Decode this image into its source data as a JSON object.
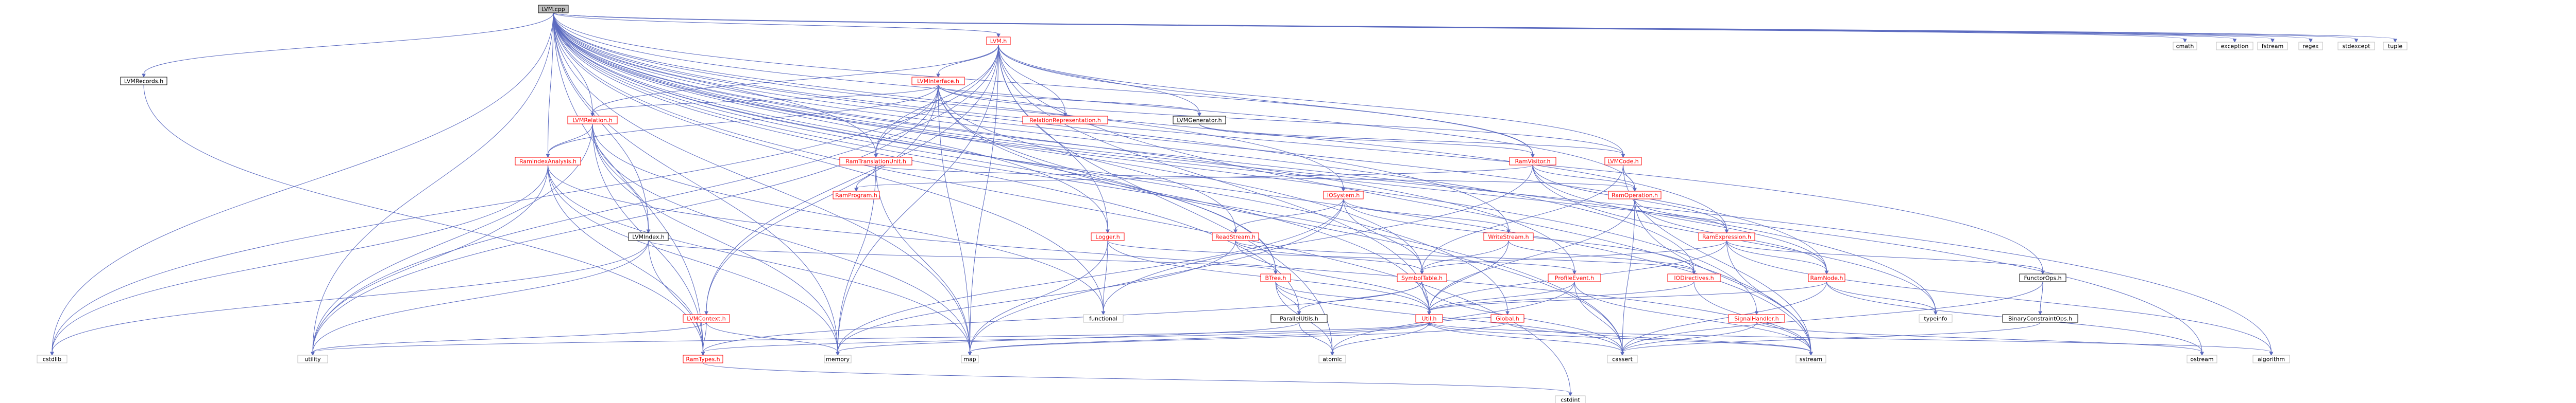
{
  "graph": {
    "root": "LVM.cpp",
    "colors": {
      "root_fill": "#bfbfbf",
      "node_fill": "#ffffff",
      "node_border": "#000000",
      "node_border_undoc": "#bfbfbf",
      "link_text": "#000000",
      "red_text": "#ff0000",
      "edge": "#5c6bc0"
    },
    "nodes": [
      {
        "id": "lvm_cpp",
        "label": "LVM.cpp",
        "style": "root"
      },
      {
        "id": "lvm_h",
        "label": "LVM.h",
        "style": "red"
      },
      {
        "id": "lvmrecords_h",
        "label": "LVMRecords.h",
        "style": "normal"
      },
      {
        "id": "lvminterface_h",
        "label": "LVMInterface.h",
        "style": "red"
      },
      {
        "id": "lvmrelation_h",
        "label": "LVMRelation.h",
        "style": "red"
      },
      {
        "id": "relationrepr_h",
        "label": "RelationRepresentation.h",
        "style": "red"
      },
      {
        "id": "lvmgenerator_h",
        "label": "LVMGenerator.h",
        "style": "normal"
      },
      {
        "id": "raminterm_h",
        "label": "RamTranslationUnit.h",
        "style": "red"
      },
      {
        "id": "ramvisitor_h",
        "label": "RamVisitor.h",
        "style": "red"
      },
      {
        "id": "lvmcode_h",
        "label": "LVMCode.h",
        "style": "red"
      },
      {
        "id": "ramindexanalysis_h",
        "label": "RamIndexAnalysis.h",
        "style": "red"
      },
      {
        "id": "ramprogram_h",
        "label": "RamProgram.h",
        "style": "red"
      },
      {
        "id": "iosystem_h",
        "label": "IOSystem.h",
        "style": "red"
      },
      {
        "id": "ramoperation_h",
        "label": "RamOperation.h",
        "style": "red"
      },
      {
        "id": "lvmindex_h",
        "label": "LVMIndex.h",
        "style": "normal"
      },
      {
        "id": "logger_h",
        "label": "Logger.h",
        "style": "red"
      },
      {
        "id": "readstream_h",
        "label": "ReadStream.h",
        "style": "red"
      },
      {
        "id": "writestream_h",
        "label": "WriteStream.h",
        "style": "red"
      },
      {
        "id": "ramexpression_h",
        "label": "RamExpression.h",
        "style": "red"
      },
      {
        "id": "ramnode_h",
        "label": "RamNode.h",
        "style": "red"
      },
      {
        "id": "iodirectives_h",
        "label": "IODirectives.h",
        "style": "red"
      },
      {
        "id": "btree_h",
        "label": "BTree.h",
        "style": "red"
      },
      {
        "id": "symboltable_h",
        "label": "SymbolTable.h",
        "style": "red"
      },
      {
        "id": "profilevent_h",
        "label": "ProfileEvent.h",
        "style": "red"
      },
      {
        "id": "functorops_h",
        "label": "FunctorOps.h",
        "style": "normal"
      },
      {
        "id": "lvmcontext_h",
        "label": "LVMContext.h",
        "style": "red"
      },
      {
        "id": "parallelutils_h",
        "label": "ParallelUtils.h",
        "style": "normal"
      },
      {
        "id": "util_h",
        "label": "Util.h",
        "style": "red"
      },
      {
        "id": "global_h",
        "label": "Global.h",
        "style": "red"
      },
      {
        "id": "signalhandler_h",
        "label": "SignalHandler.h",
        "style": "red"
      },
      {
        "id": "binaryconstraint_h",
        "label": "BinaryConstraintOps.h",
        "style": "normal"
      },
      {
        "id": "ramtypes_h",
        "label": "RamTypes.h",
        "style": "red"
      },
      {
        "id": "cmath",
        "label": "cmath",
        "style": "sys"
      },
      {
        "id": "exception",
        "label": "exception",
        "style": "sys"
      },
      {
        "id": "fstream",
        "label": "fstream",
        "style": "sys"
      },
      {
        "id": "regex",
        "label": "regex",
        "style": "sys"
      },
      {
        "id": "stdexcept",
        "label": "stdexcept",
        "style": "sys"
      },
      {
        "id": "tuple",
        "label": "tuple",
        "style": "sys"
      },
      {
        "id": "typeinfo",
        "label": "typeinfo",
        "style": "sys"
      },
      {
        "id": "functional",
        "label": "functional",
        "style": "sys"
      },
      {
        "id": "cstdlib",
        "label": "cstdlib",
        "style": "sys"
      },
      {
        "id": "utility",
        "label": "utility",
        "style": "sys"
      },
      {
        "id": "memory",
        "label": "memory",
        "style": "sys"
      },
      {
        "id": "map",
        "label": "map",
        "style": "sys"
      },
      {
        "id": "atomic",
        "label": "atomic",
        "style": "sys"
      },
      {
        "id": "cassert",
        "label": "cassert",
        "style": "sys"
      },
      {
        "id": "sstream",
        "label": "sstream",
        "style": "sys"
      },
      {
        "id": "ostream",
        "label": "ostream",
        "style": "sys"
      },
      {
        "id": "algorithm",
        "label": "algorithm",
        "style": "sys"
      },
      {
        "id": "cstdint",
        "label": "cstdint",
        "style": "sys"
      }
    ],
    "edges": [
      [
        "lvm_cpp",
        "lvm_h"
      ],
      [
        "lvm_cpp",
        "lvmrecords_h"
      ],
      [
        "lvm_cpp",
        "cstdlib"
      ],
      [
        "lvm_cpp",
        "utility"
      ],
      [
        "lvm_cpp",
        "memory"
      ],
      [
        "lvm_cpp",
        "map"
      ],
      [
        "lvm_cpp",
        "lvmindex_h"
      ],
      [
        "lvm_cpp",
        "ramindexanalysis_h"
      ],
      [
        "lvm_cpp",
        "lvmrelation_h"
      ],
      [
        "lvm_cpp",
        "raminterm_h"
      ],
      [
        "lvm_cpp",
        "ramvisitor_h"
      ],
      [
        "lvm_cpp",
        "logger_h"
      ],
      [
        "lvm_cpp",
        "iosystem_h"
      ],
      [
        "lvm_cpp",
        "ramexpression_h"
      ],
      [
        "lvm_cpp",
        "ramnode_h"
      ],
      [
        "lvm_cpp",
        "ramoperation_h"
      ],
      [
        "lvm_cpp",
        "writestream_h"
      ],
      [
        "lvm_cpp",
        "symboltable_h"
      ],
      [
        "lvm_cpp",
        "profilevent_h"
      ],
      [
        "lvm_cpp",
        "functorops_h"
      ],
      [
        "lvm_cpp",
        "btree_h"
      ],
      [
        "lvm_cpp",
        "util_h"
      ],
      [
        "lvm_cpp",
        "global_h"
      ],
      [
        "lvm_cpp",
        "iodirectives_h"
      ],
      [
        "lvm_cpp",
        "signalhandler_h"
      ],
      [
        "lvm_cpp",
        "parallelutils_h"
      ],
      [
        "lvm_cpp",
        "ramtypes_h"
      ],
      [
        "lvm_cpp",
        "cassert"
      ],
      [
        "lvm_cpp",
        "sstream"
      ],
      [
        "lvm_cpp",
        "ostream"
      ],
      [
        "lvm_cpp",
        "algorithm"
      ],
      [
        "lvm_cpp",
        "cmath"
      ],
      [
        "lvm_cpp",
        "exception"
      ],
      [
        "lvm_cpp",
        "fstream"
      ],
      [
        "lvm_cpp",
        "regex"
      ],
      [
        "lvm_cpp",
        "stdexcept"
      ],
      [
        "lvm_cpp",
        "tuple"
      ],
      [
        "lvm_cpp",
        "typeinfo"
      ],
      [
        "lvm_cpp",
        "cstdint"
      ],
      [
        "lvm_cpp",
        "functional"
      ],
      [
        "lvm_h",
        "lvminterface_h"
      ],
      [
        "lvm_h",
        "lvmcode_h"
      ],
      [
        "lvm_h",
        "lvmgenerator_h"
      ],
      [
        "lvm_h",
        "relationrepr_h"
      ],
      [
        "lvm_h",
        "lvmrelation_h"
      ],
      [
        "lvm_h",
        "lvmcontext_h"
      ],
      [
        "lvm_h",
        "logger_h"
      ],
      [
        "lvm_h",
        "raminterm_h"
      ],
      [
        "lvm_h",
        "ramvisitor_h"
      ],
      [
        "lvm_h",
        "util_h"
      ],
      [
        "lvm_h",
        "cstdlib"
      ],
      [
        "lvm_h",
        "utility"
      ],
      [
        "lvm_h",
        "memory"
      ],
      [
        "lvm_h",
        "map"
      ],
      [
        "lvm_h",
        "atomic"
      ],
      [
        "lvm_h",
        "sstream"
      ],
      [
        "lvminterface_h",
        "lvmrelation_h"
      ],
      [
        "lvminterface_h",
        "relationrepr_h"
      ],
      [
        "lvminterface_h",
        "lvmgenerator_h"
      ],
      [
        "lvminterface_h",
        "raminterm_h"
      ],
      [
        "lvminterface_h",
        "ramindexanalysis_h"
      ],
      [
        "lvminterface_h",
        "lvmcontext_h"
      ],
      [
        "lvminterface_h",
        "readstream_h"
      ],
      [
        "lvminterface_h",
        "btree_h"
      ],
      [
        "lvminterface_h",
        "lvmcode_h"
      ],
      [
        "lvminterface_h",
        "map"
      ],
      [
        "lvminterface_h",
        "cassert"
      ],
      [
        "lvminterface_h",
        "utility"
      ],
      [
        "lvmrelation_h",
        "ramindexanalysis_h"
      ],
      [
        "lvmrelation_h",
        "lvmindex_h"
      ],
      [
        "lvmrelation_h",
        "ramtypes_h"
      ],
      [
        "lvmrelation_h",
        "utility"
      ],
      [
        "lvmrelation_h",
        "map"
      ],
      [
        "lvmrelation_h",
        "memory"
      ],
      [
        "lvmrelation_h",
        "functional"
      ],
      [
        "lvmgenerator_h",
        "ramvisitor_h"
      ],
      [
        "lvmgenerator_h",
        "lvmcode_h"
      ],
      [
        "lvmcode_h",
        "ramoperation_h"
      ],
      [
        "lvmcode_h",
        "symboltable_h"
      ],
      [
        "lvmcode_h",
        "sstream"
      ],
      [
        "raminterm_h",
        "ramprogram_h"
      ],
      [
        "raminterm_h",
        "ramoperation_h"
      ],
      [
        "raminterm_h",
        "map"
      ],
      [
        "raminterm_h",
        "memory"
      ],
      [
        "ramvisitor_h",
        "ramprogram_h"
      ],
      [
        "ramvisitor_h",
        "ramoperation_h"
      ],
      [
        "ramvisitor_h",
        "ramexpression_h"
      ],
      [
        "ramvisitor_h",
        "ramnode_h"
      ],
      [
        "ramvisitor_h",
        "functional"
      ],
      [
        "ramvisitor_h",
        "typeinfo"
      ],
      [
        "ramindexanalysis_h",
        "ramtypes_h"
      ],
      [
        "ramindexanalysis_h",
        "cstdlib"
      ],
      [
        "ramindexanalysis_h",
        "utility"
      ],
      [
        "ramindexanalysis_h",
        "memory"
      ],
      [
        "ramindexanalysis_h",
        "map"
      ],
      [
        "ramindexanalysis_h",
        "sstream"
      ],
      [
        "iosystem_h",
        "readstream_h"
      ],
      [
        "iosystem_h",
        "writestream_h"
      ],
      [
        "iosystem_h",
        "iodirectives_h"
      ],
      [
        "iosystem_h",
        "symboltable_h"
      ],
      [
        "iosystem_h",
        "map"
      ],
      [
        "iosystem_h",
        "memory"
      ],
      [
        "ramoperation_h",
        "ramexpression_h"
      ],
      [
        "ramoperation_h",
        "ramnode_h"
      ],
      [
        "ramoperation_h",
        "util_h"
      ],
      [
        "ramoperation_h",
        "cassert"
      ],
      [
        "ramoperation_h",
        "sstream"
      ],
      [
        "lvmindex_h",
        "btree_h"
      ],
      [
        "lvmindex_h",
        "ramtypes_h"
      ],
      [
        "lvmindex_h",
        "utility"
      ],
      [
        "lvmindex_h",
        "cstdlib"
      ],
      [
        "logger_h",
        "profilevent_h"
      ],
      [
        "logger_h",
        "util_h"
      ],
      [
        "logger_h",
        "functional"
      ],
      [
        "logger_h",
        "map"
      ],
      [
        "readstream_h",
        "symboltable_h"
      ],
      [
        "readstream_h",
        "iodirectives_h"
      ],
      [
        "readstream_h",
        "util_h"
      ],
      [
        "readstream_h",
        "memory"
      ],
      [
        "writestream_h",
        "symboltable_h"
      ],
      [
        "writestream_h",
        "iodirectives_h"
      ],
      [
        "writestream_h",
        "util_h"
      ],
      [
        "ramexpression_h",
        "ramnode_h"
      ],
      [
        "ramexpression_h",
        "functorops_h"
      ],
      [
        "ramexpression_h",
        "symboltable_h"
      ],
      [
        "ramexpression_h",
        "util_h"
      ],
      [
        "ramexpression_h",
        "algorithm"
      ],
      [
        "ramexpression_h",
        "sstream"
      ],
      [
        "ramnode_h",
        "util_h"
      ],
      [
        "ramnode_h",
        "typeinfo"
      ],
      [
        "ramnode_h",
        "cassert"
      ],
      [
        "ramnode_h",
        "ostream"
      ],
      [
        "iodirectives_h",
        "util_h"
      ],
      [
        "iodirectives_h",
        "sstream"
      ],
      [
        "btree_h",
        "parallelutils_h"
      ],
      [
        "btree_h",
        "util_h"
      ],
      [
        "btree_h",
        "cassert"
      ],
      [
        "btree_h",
        "atomic"
      ],
      [
        "symboltable_h",
        "parallelutils_h"
      ],
      [
        "symboltable_h",
        "util_h"
      ],
      [
        "symboltable_h",
        "ramtypes_h"
      ],
      [
        "symboltable_h",
        "cassert"
      ],
      [
        "profilevent_h",
        "util_h"
      ],
      [
        "profilevent_h",
        "atomic"
      ],
      [
        "profilevent_h",
        "cassert"
      ],
      [
        "profilevent_h",
        "sstream"
      ],
      [
        "functorops_h",
        "binaryconstraint_h"
      ],
      [
        "functorops_h",
        "cassert"
      ],
      [
        "lvmcontext_h",
        "ramtypes_h"
      ],
      [
        "lvmcontext_h",
        "utility"
      ],
      [
        "lvmcontext_h",
        "memory"
      ],
      [
        "parallelutils_h",
        "atomic"
      ],
      [
        "parallelutils_h",
        "memory"
      ],
      [
        "util_h",
        "ramtypes_h"
      ],
      [
        "util_h",
        "utility"
      ],
      [
        "util_h",
        "map"
      ],
      [
        "util_h",
        "atomic"
      ],
      [
        "util_h",
        "cassert"
      ],
      [
        "util_h",
        "sstream"
      ],
      [
        "util_h",
        "algorithm"
      ],
      [
        "global_h",
        "util_h"
      ],
      [
        "global_h",
        "map"
      ],
      [
        "global_h",
        "sstream"
      ],
      [
        "signalhandler_h",
        "cassert"
      ],
      [
        "signalhandler_h",
        "ostream"
      ],
      [
        "binaryconstraint_h",
        "cassert"
      ],
      [
        "ramtypes_h",
        "cstdint"
      ],
      [
        "lvmrecords_h",
        "ramtypes_h"
      ]
    ]
  }
}
